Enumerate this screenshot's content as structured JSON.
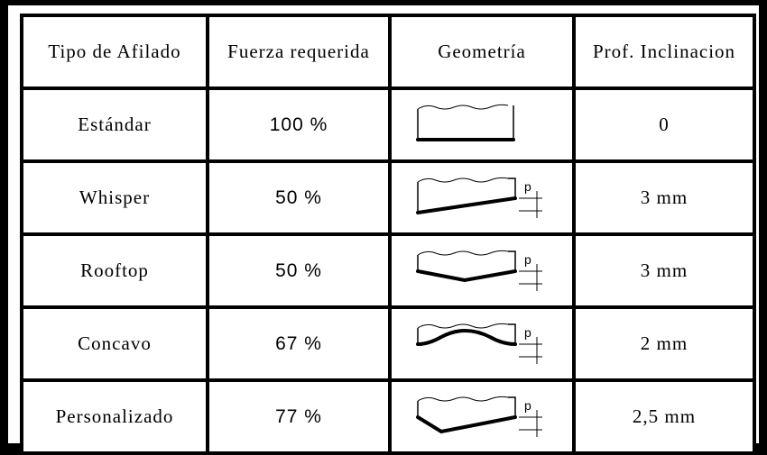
{
  "table": {
    "headers": [
      "Tipo de Afilado",
      "Fuerza requerida",
      "Geometría",
      "Prof. Inclinacion"
    ],
    "rows": [
      {
        "tipo": "Estándar",
        "fuerza": "100 %",
        "profile": "standard",
        "prof": "0",
        "p_label": ""
      },
      {
        "tipo": "Whisper",
        "fuerza": "50 %",
        "profile": "whisper",
        "prof": "3 mm",
        "p_label": "p"
      },
      {
        "tipo": "Rooftop",
        "fuerza": "50 %",
        "profile": "rooftop",
        "prof": "3 mm",
        "p_label": "p"
      },
      {
        "tipo": "Concavo",
        "fuerza": "67 %",
        "profile": "concave",
        "prof": "2 mm",
        "p_label": "p"
      },
      {
        "tipo": "Personalizado",
        "fuerza": "77 %",
        "profile": "custom",
        "prof": "2,5 mm",
        "p_label": "p"
      }
    ]
  }
}
